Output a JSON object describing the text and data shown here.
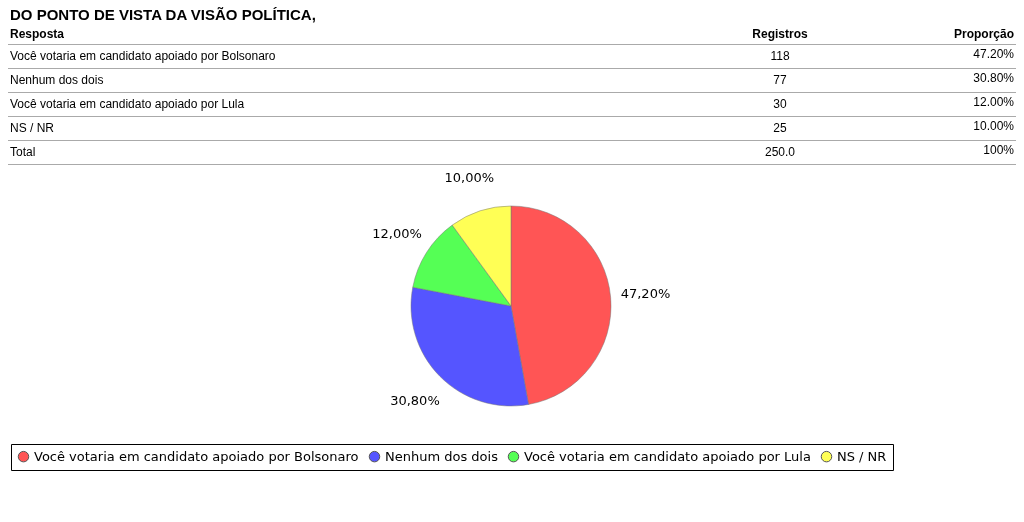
{
  "chart_data": {
    "type": "pie",
    "title": "DO PONTO DE VISTA DA VISÃO POLÍTICA,",
    "categories": [
      "Você votaria em candidato apoiado por Bolsonaro",
      "Nenhum dos dois",
      "Você votaria em candidato apoiado por Lula",
      "NS / NR"
    ],
    "values": [
      47.2,
      30.8,
      12.0,
      10.0
    ],
    "colors": [
      "#ff5555",
      "#5555ff",
      "#55ff55",
      "#ffff55"
    ],
    "value_labels": [
      "47,20%",
      "30,80%",
      "12,00%",
      "10,00%"
    ],
    "legend": "bottom",
    "annotations": [
      "Resposta",
      "Registros",
      "Proporção",
      "Você votaria em candidato apoiado por Bolsonaro",
      "118",
      "47.20%",
      "Nenhum dos dois",
      "77",
      "30.80%",
      "Você votaria em candidato apoiado por Lula",
      "30",
      "12.00%",
      "NS / NR",
      "25",
      "10.00%",
      "Total",
      "250.0",
      "100%"
    ]
  }
}
